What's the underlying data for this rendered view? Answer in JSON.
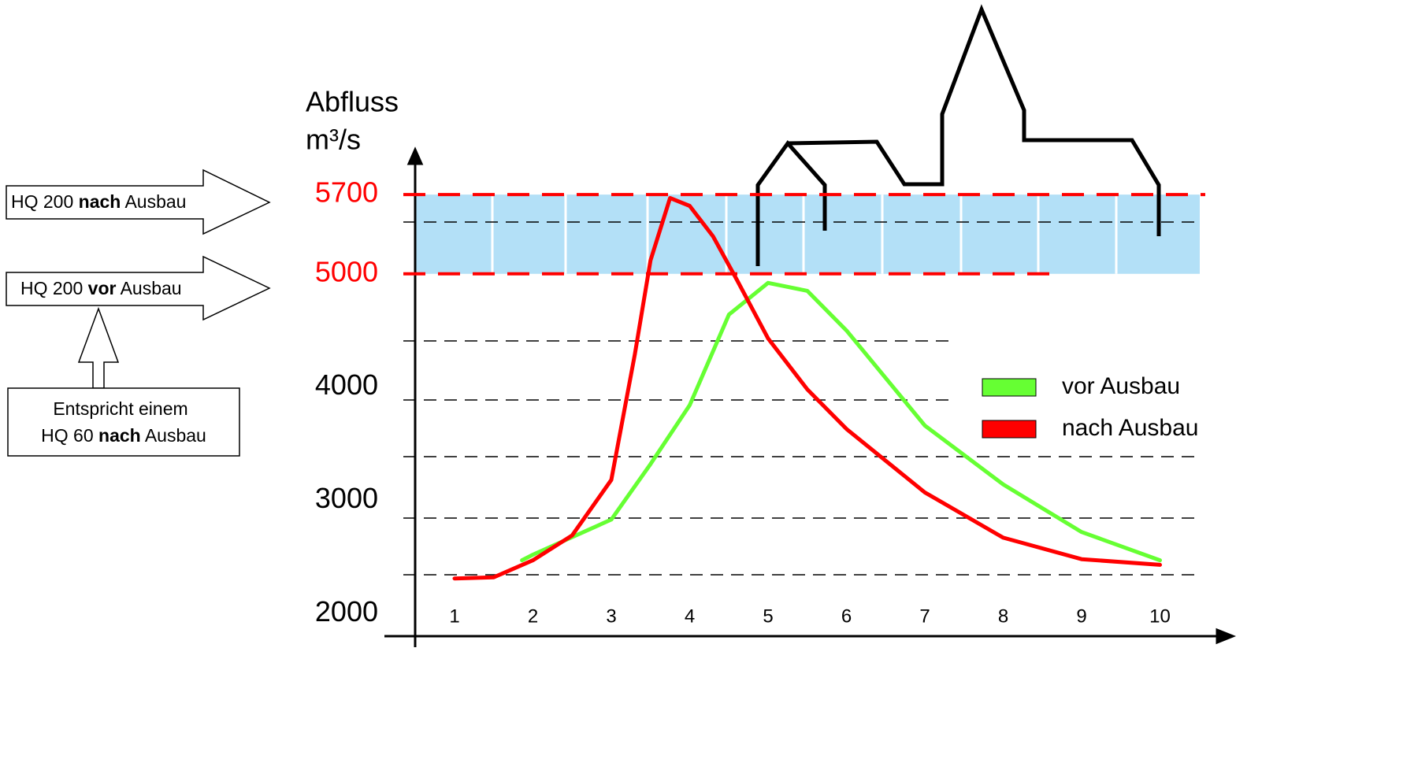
{
  "chart_data": {
    "type": "line",
    "y_label": [
      "Abfluss",
      "m³/s"
    ],
    "x": [
      1,
      2,
      3,
      4,
      5,
      6,
      7,
      8,
      9,
      10
    ],
    "xlim": [
      0.1,
      10.9
    ],
    "ylim": [
      1800,
      6000
    ],
    "yticks": [
      2000,
      3000,
      4000,
      5000,
      5700
    ],
    "band": {
      "from": 5000,
      "to": 5700,
      "color": "#b3e0f7",
      "line_color": "#ff0000"
    },
    "series": [
      {
        "name": "vor Ausbau",
        "color": "#66ff33",
        "x": [
          1.86,
          2,
          3,
          3.5,
          4,
          4.5,
          5,
          5.5,
          6,
          7,
          8,
          9,
          10
        ],
        "values": [
          2470,
          2520,
          2830,
          3320,
          3840,
          4640,
          4920,
          4850,
          4500,
          3660,
          3140,
          2720,
          2470
        ]
      },
      {
        "name": "nach Ausbau",
        "color": "#ff0000",
        "x": [
          1,
          1.5,
          2,
          2.5,
          3,
          3.3,
          3.5,
          3.75,
          4,
          4.3,
          4.6,
          5,
          5.5,
          6,
          7,
          8,
          9,
          10
        ],
        "values": [
          2310,
          2320,
          2470,
          2690,
          3180,
          4290,
          5120,
          5670,
          5600,
          5330,
          4950,
          4430,
          3980,
          3630,
          3070,
          2670,
          2480,
          2430
        ]
      }
    ],
    "annotations": [
      {
        "before": "HQ 200 ",
        "bold": "nach",
        "after": " Ausbau"
      },
      {
        "before": "HQ 200 ",
        "bold": "vor",
        "after": " Ausbau"
      },
      {
        "line1": "Entspricht einem",
        "before": "HQ 60 ",
        "bold": "nach",
        "after": " Ausbau"
      }
    ]
  }
}
